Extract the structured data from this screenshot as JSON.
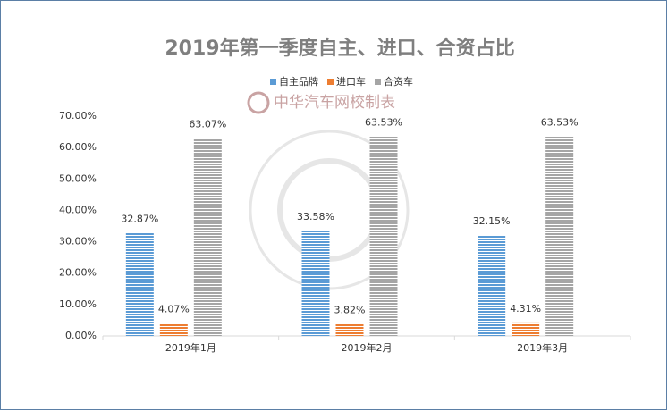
{
  "chart_data": {
    "type": "bar",
    "title": "2019年第一季度自主、进口、合资占比",
    "annotations": [
      "中华汽车网校制表"
    ],
    "categories": [
      "2019年1月",
      "2019年2月",
      "2019年3月"
    ],
    "series": [
      {
        "name": "自主品牌",
        "color": "#5b9bd5",
        "values": [
          32.87,
          33.58,
          32.15
        ],
        "value_labels": [
          "32.87%",
          "33.58%",
          "32.15%"
        ]
      },
      {
        "name": "进口车",
        "color": "#ed7d31",
        "values": [
          4.07,
          3.82,
          4.31
        ],
        "value_labels": [
          "4.07%",
          "3.82%",
          "4.31%"
        ]
      },
      {
        "name": "合资车",
        "color": "#a5a5a5",
        "values": [
          63.07,
          63.53,
          63.53
        ],
        "value_labels": [
          "63.07%",
          "63.53%",
          "63.53%"
        ]
      }
    ],
    "ylim": [
      0,
      70
    ],
    "yticks": [
      {
        "value": 0,
        "label": "0.00%"
      },
      {
        "value": 10,
        "label": "10.00%"
      },
      {
        "value": 20,
        "label": "20.00%"
      },
      {
        "value": 30,
        "label": "30.00%"
      },
      {
        "value": 40,
        "label": "40.00%"
      },
      {
        "value": 50,
        "label": "50.00%"
      },
      {
        "value": 60,
        "label": "60.00%"
      },
      {
        "value": 70,
        "label": "70.00%"
      }
    ],
    "grid": false
  }
}
